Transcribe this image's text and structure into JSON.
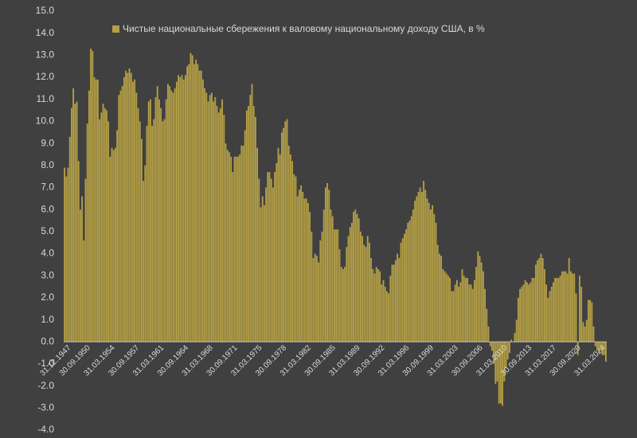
{
  "chart_data": {
    "type": "bar",
    "categories": [
      null,
      null,
      null,
      "31.12.1947",
      null,
      null,
      null,
      null,
      null,
      null,
      null,
      null,
      null,
      null,
      "30.09.1950",
      null,
      null,
      null,
      null,
      null,
      null,
      null,
      null,
      null,
      null,
      null,
      null,
      null,
      "31.03.1954",
      null,
      null,
      null,
      null,
      null,
      null,
      null,
      null,
      null,
      null,
      null,
      null,
      null,
      "30.09.1957",
      null,
      null,
      null,
      null,
      null,
      null,
      null,
      null,
      null,
      null,
      null,
      null,
      null,
      "31.03.1961",
      null,
      null,
      null,
      null,
      null,
      null,
      null,
      null,
      null,
      null,
      null,
      null,
      null,
      "30.09.1964",
      null,
      null,
      null,
      null,
      null,
      null,
      null,
      null,
      null,
      null,
      null,
      null,
      null,
      "31.03.1968",
      null,
      null,
      null,
      null,
      null,
      null,
      null,
      null,
      null,
      null,
      null,
      null,
      null,
      "30.09.1971",
      null,
      null,
      null,
      null,
      null,
      null,
      null,
      null,
      null,
      null,
      null,
      null,
      null,
      "31.03.1975",
      null,
      null,
      null,
      null,
      null,
      null,
      null,
      null,
      null,
      null,
      null,
      null,
      null,
      "30.09.1978",
      null,
      null,
      null,
      null,
      null,
      null,
      null,
      null,
      null,
      null,
      null,
      null,
      null,
      "31.03.1982",
      null,
      null,
      null,
      null,
      null,
      null,
      null,
      null,
      null,
      null,
      null,
      null,
      null,
      "30.09.1985",
      null,
      null,
      null,
      null,
      null,
      null,
      null,
      null,
      null,
      null,
      null,
      null,
      null,
      "31.03.1989",
      null,
      null,
      null,
      null,
      null,
      null,
      null,
      null,
      null,
      null,
      null,
      null,
      null,
      "30.09.1992",
      null,
      null,
      null,
      null,
      null,
      null,
      null,
      null,
      null,
      null,
      null,
      null,
      null,
      "31.03.1996",
      null,
      null,
      null,
      null,
      null,
      null,
      null,
      null,
      null,
      null,
      null,
      null,
      null,
      "30.09.1999",
      null,
      null,
      null,
      null,
      null,
      null,
      null,
      null,
      null,
      null,
      null,
      null,
      null,
      "31.03.2003",
      null,
      null,
      null,
      null,
      null,
      null,
      null,
      null,
      null,
      null,
      null,
      null,
      null,
      "30.09.2006",
      null,
      null,
      null,
      null,
      null,
      null,
      null,
      null,
      null,
      null,
      null,
      null,
      null,
      "31.03.2010",
      null,
      null,
      null,
      null,
      null,
      null,
      null,
      null,
      null,
      null,
      null,
      null,
      null,
      "30.09.2013",
      null,
      null,
      null,
      null,
      null,
      null,
      null,
      null,
      null,
      null,
      null,
      null,
      null,
      "31.03.2017",
      null,
      null,
      null,
      null,
      null,
      null,
      null,
      null,
      null,
      null,
      null,
      null,
      null,
      "30.09.2020",
      null,
      null,
      null,
      null,
      null,
      null,
      null,
      null,
      null,
      null,
      null,
      null,
      null,
      "31.03.2024",
      null
    ],
    "series": [
      {
        "name": "Чистые национальные сбережения к валовому национальному доходу США, в %",
        "color": "#b5a045",
        "values": [
          7.9,
          7.5,
          7.9,
          9.3,
          10.6,
          11.5,
          10.8,
          10.9,
          8.2,
          6.0,
          6.6,
          4.6,
          7.4,
          9.9,
          11.4,
          13.3,
          13.2,
          12.0,
          11.9,
          11.9,
          10.1,
          10.4,
          10.8,
          10.6,
          10.5,
          10.0,
          8.4,
          8.8,
          8.7,
          8.8,
          9.6,
          11.2,
          11.4,
          11.6,
          12.0,
          12.3,
          12.2,
          12.4,
          12.2,
          11.8,
          11.9,
          11.3,
          10.6,
          10.0,
          9.2,
          7.3,
          8.0,
          9.8,
          10.9,
          11.0,
          9.8,
          10.1,
          11.1,
          11.6,
          11.0,
          10.6,
          10.0,
          10.1,
          11.0,
          11.7,
          11.6,
          11.4,
          11.3,
          11.5,
          11.8,
          12.1,
          12.0,
          12.1,
          11.9,
          12.1,
          12.5,
          12.6,
          13.1,
          13.0,
          12.6,
          12.8,
          12.6,
          12.3,
          12.3,
          11.9,
          11.5,
          11.3,
          10.9,
          11.2,
          11.3,
          10.9,
          11.1,
          10.7,
          10.4,
          10.6,
          11.0,
          10.3,
          9.0,
          8.7,
          8.6,
          8.4,
          7.7,
          8.4,
          8.4,
          8.4,
          8.5,
          8.9,
          8.9,
          9.6,
          10.5,
          10.7,
          11.2,
          11.7,
          10.7,
          10.2,
          8.8,
          7.4,
          6.1,
          6.6,
          6.2,
          7.0,
          7.7,
          7.7,
          7.4,
          7.0,
          7.7,
          8.1,
          8.8,
          8.5,
          9.5,
          9.7,
          10.0,
          10.1,
          8.9,
          8.5,
          8.2,
          7.6,
          7.5,
          6.6,
          6.9,
          7.1,
          6.8,
          6.5,
          6.5,
          6.3,
          5.9,
          5.0,
          3.8,
          4.0,
          3.9,
          3.6,
          4.6,
          5.0,
          6.0,
          7.0,
          7.2,
          6.9,
          6.0,
          5.7,
          5.1,
          5.1,
          5.1,
          4.2,
          3.4,
          3.3,
          3.4,
          4.3,
          4.8,
          5.2,
          5.4,
          5.9,
          6.0,
          5.8,
          5.6,
          5.0,
          4.8,
          4.4,
          4.3,
          4.8,
          4.5,
          3.8,
          3.3,
          3.1,
          3.4,
          3.3,
          3.2,
          2.6,
          2.8,
          2.5,
          2.3,
          2.2,
          3.0,
          3.5,
          3.5,
          3.7,
          4.0,
          3.8,
          4.5,
          4.7,
          4.9,
          5.1,
          5.4,
          5.5,
          5.7,
          6.0,
          6.4,
          6.6,
          6.8,
          7.0,
          6.8,
          7.3,
          6.9,
          6.5,
          6.3,
          6.0,
          6.2,
          5.8,
          5.4,
          4.4,
          4.0,
          3.9,
          3.3,
          3.2,
          3.1,
          3.0,
          2.9,
          2.3,
          2.3,
          2.6,
          2.8,
          2.5,
          2.7,
          3.3,
          3.0,
          2.9,
          2.9,
          2.6,
          2.6,
          2.4,
          2.8,
          3.4,
          4.1,
          3.9,
          3.6,
          3.2,
          2.4,
          1.5,
          0.7,
          -0.2,
          -0.4,
          -1.0,
          -1.9,
          -1.8,
          -2.8,
          -2.8,
          -2.9,
          -1.8,
          -1.2,
          -0.8,
          -0.5,
          0.1,
          0.0,
          0.4,
          1.0,
          2.0,
          2.4,
          2.5,
          2.6,
          2.8,
          2.7,
          2.6,
          2.7,
          2.9,
          2.9,
          3.5,
          3.7,
          3.8,
          4.0,
          3.8,
          3.3,
          2.6,
          2.0,
          2.3,
          2.5,
          2.7,
          2.9,
          2.9,
          2.9,
          3.0,
          3.2,
          3.2,
          3.2,
          3.1,
          3.8,
          3.2,
          3.1,
          3.1,
          2.2,
          -0.6,
          3.0,
          2.5,
          0.9,
          0.7,
          1.0,
          1.9,
          1.9,
          1.8,
          0.7,
          -0.2,
          -0.3,
          -0.5,
          -0.4,
          -0.6,
          -0.6,
          -0.9
        ]
      }
    ],
    "ylim": [
      -4,
      15
    ],
    "yticks": [
      {
        "value": -4,
        "label": "-4.0"
      },
      {
        "value": -3,
        "label": "-3.0"
      },
      {
        "value": -2,
        "label": "-2.0"
      },
      {
        "value": -1,
        "label": "-1.0"
      },
      {
        "value": 0,
        "label": "0.0"
      },
      {
        "value": 1,
        "label": "1.0"
      },
      {
        "value": 2,
        "label": "2.0"
      },
      {
        "value": 3,
        "label": "3.0"
      },
      {
        "value": 4,
        "label": "4.0"
      },
      {
        "value": 5,
        "label": "5.0"
      },
      {
        "value": 6,
        "label": "6.0"
      },
      {
        "value": 7,
        "label": "7.0"
      },
      {
        "value": 8,
        "label": "8.0"
      },
      {
        "value": 9,
        "label": "9.0"
      },
      {
        "value": 10,
        "label": "10.0"
      },
      {
        "value": 11,
        "label": "11.0"
      },
      {
        "value": 12,
        "label": "12.0"
      },
      {
        "value": 13,
        "label": "13.0"
      },
      {
        "value": 14,
        "label": "14.0"
      },
      {
        "value": 15,
        "label": "15.0"
      }
    ],
    "grid": false,
    "legend": "top"
  }
}
